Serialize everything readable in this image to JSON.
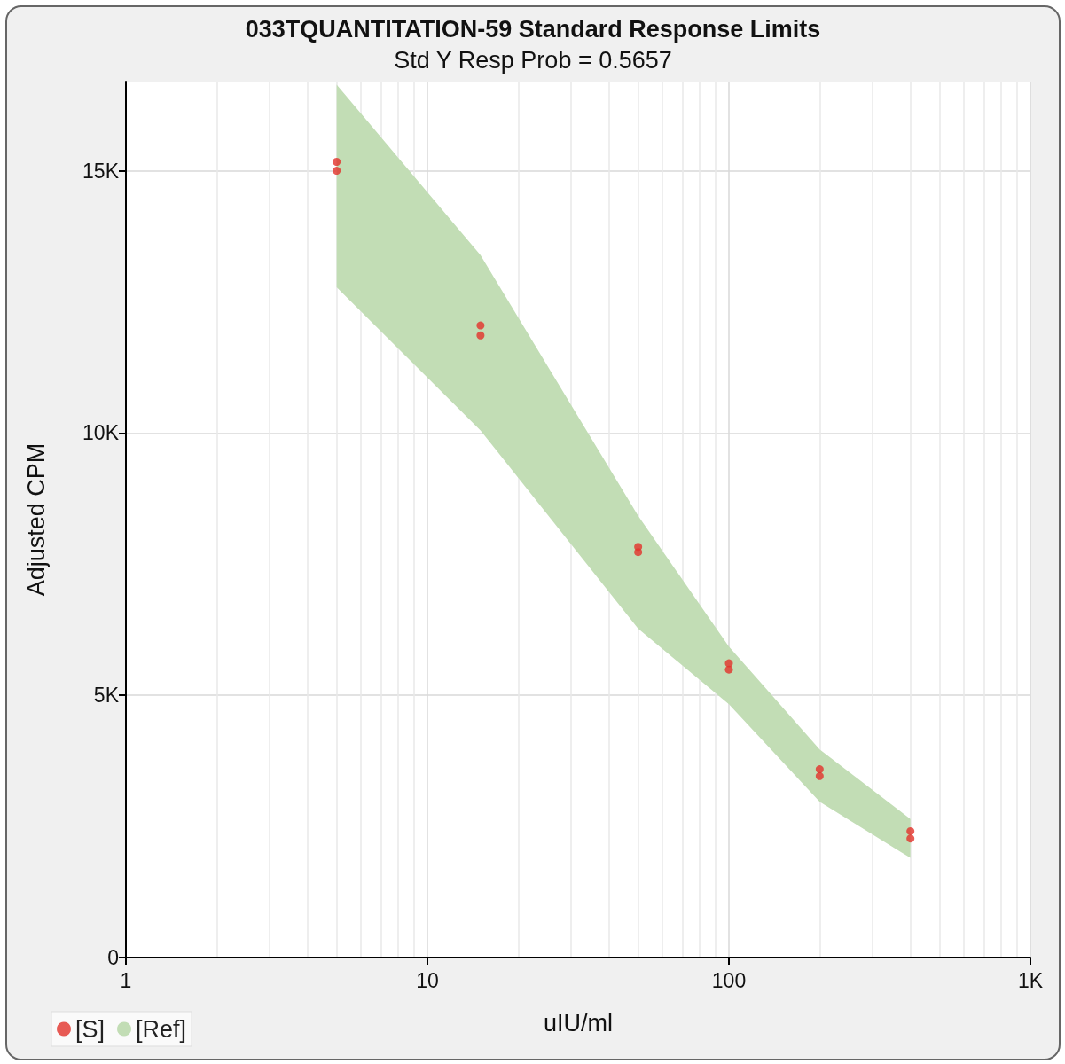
{
  "chart_data": {
    "type": "scatter",
    "title": "033TQUANTITATION-59 Standard Response Limits",
    "subtitle": "Std Y Resp Prob = 0.5657",
    "xlabel": "uIU/ml",
    "ylabel": "Adjusted CPM",
    "log": "x",
    "grid": true,
    "legend": "bottom left",
    "marker": "circle",
    "xlim": [
      1,
      1000
    ],
    "xticks": [
      1,
      10,
      100,
      {
        "value": 1000,
        "label": "1K"
      }
    ],
    "ylim": [
      0,
      16700
    ],
    "yticks": [
      0,
      {
        "value": 5000,
        "label": "5K"
      },
      {
        "value": 10000,
        "label": "10K"
      },
      {
        "value": 15000,
        "label": "15K"
      }
    ],
    "series": [
      {
        "type": "area",
        "name": "[Ref]",
        "color": "#c2ddb5",
        "x": [
          5,
          15,
          50,
          100,
          200,
          400
        ],
        "values": [
          null,
          null,
          null,
          null,
          null,
          null
        ],
        "lower": [
          12780,
          10050,
          6270,
          4830,
          2970,
          1900
        ],
        "upper": [
          16640,
          13390,
          8420,
          5930,
          3970,
          2640
        ]
      },
      {
        "name": "[S]",
        "color": "#e2322b",
        "x": [
          5,
          5,
          15,
          15,
          50,
          50,
          100,
          100,
          200,
          200,
          400,
          400
        ],
        "values": [
          15170,
          15000,
          12050,
          11860,
          7830,
          7730,
          5610,
          5490,
          3590,
          3460,
          2410,
          2270
        ]
      }
    ]
  }
}
